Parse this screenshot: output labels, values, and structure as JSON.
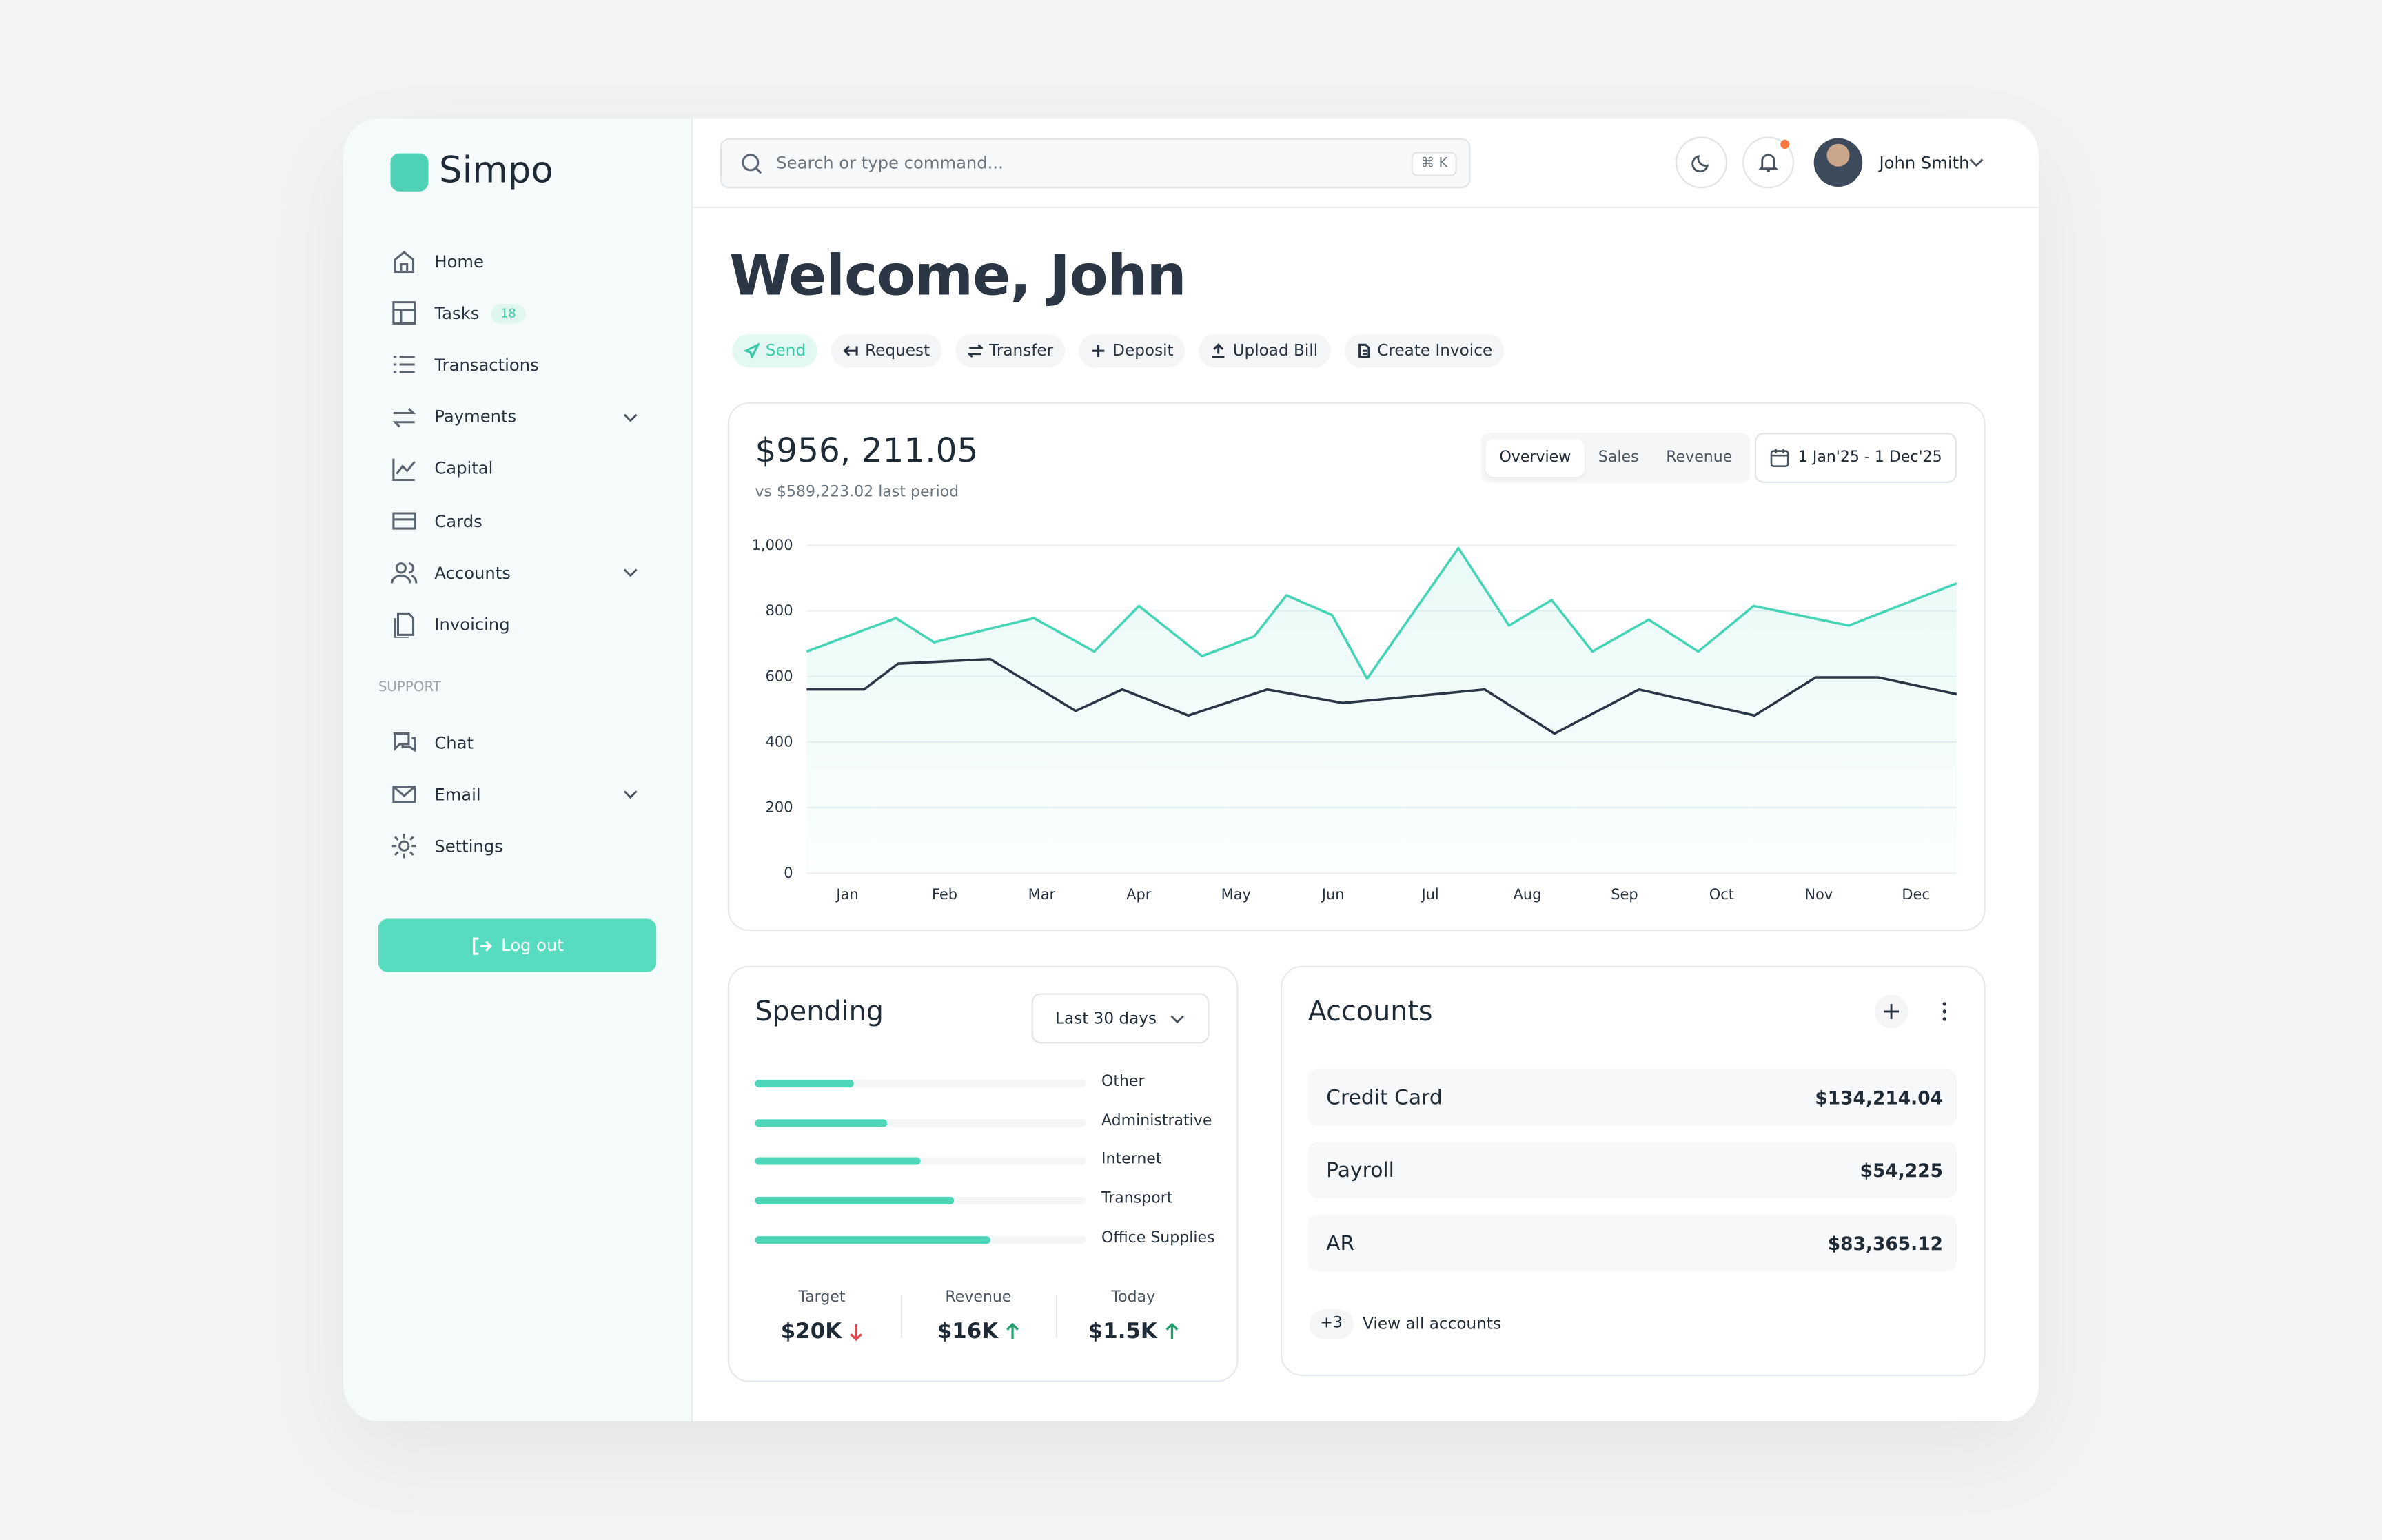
{
  "brand": "Simpo",
  "search": {
    "placeholder": "Search or type command...",
    "shortcut": "⌘ K"
  },
  "user": {
    "name": "John Smith"
  },
  "nav": [
    {
      "label": "Home"
    },
    {
      "label": "Tasks",
      "badge": 18
    },
    {
      "label": "Transactions"
    },
    {
      "label": "Payments",
      "expandable": true
    },
    {
      "label": "Capital"
    },
    {
      "label": "Cards"
    },
    {
      "label": "Accounts",
      "expandable": true
    },
    {
      "label": "Invoicing"
    }
  ],
  "support_label": "SUPPORT",
  "support": [
    {
      "label": "Chat"
    },
    {
      "label": "Email",
      "expandable": true
    },
    {
      "label": "Settings"
    }
  ],
  "logout": "Log out",
  "welcome": "Welcome, John",
  "actions": [
    "Send",
    "Request",
    "Transfer",
    "Deposit",
    "Upload Bill",
    "Create Invoice"
  ],
  "chart": {
    "type": "line",
    "total": "$956, 211.05",
    "comparison": "vs $589,223.02 last period",
    "tabs": [
      "Overview",
      "Sales",
      "Revenue"
    ],
    "date_range": "1 Jan'25 - 1 Dec'25",
    "xlim": [
      0.58,
      12.42
    ],
    "xticks": [
      {
        "value": 1,
        "label": "Jan"
      },
      {
        "value": 2,
        "label": "Feb"
      },
      {
        "value": 3,
        "label": "Mar"
      },
      {
        "value": 4,
        "label": "Apr"
      },
      {
        "value": 5,
        "label": "May"
      },
      {
        "value": 6,
        "label": "Jun"
      },
      {
        "value": 7,
        "label": "Jul"
      },
      {
        "value": 8,
        "label": "Aug"
      },
      {
        "value": 9,
        "label": "Sep"
      },
      {
        "value": 10,
        "label": "Oct"
      },
      {
        "value": 11,
        "label": "Nov"
      },
      {
        "value": 12,
        "label": "Dec"
      }
    ],
    "ylim": [
      0,
      1000
    ],
    "yticks": [
      {
        "value": 1000,
        "label": "1,000"
      },
      800,
      600,
      400,
      200,
      0
    ],
    "grid": true,
    "series": [
      {
        "color": "#45d4b5",
        "area": true,
        "x": [
          0.58,
          1.5,
          1.89,
          2.92,
          3.54,
          4.0,
          4.65,
          5.19,
          5.52,
          5.99,
          6.35,
          7.29,
          7.81,
          8.25,
          8.67,
          9.25,
          9.76,
          10.33,
          11.31,
          12.42
        ],
        "values": [
          676,
          778,
          704,
          778,
          676,
          815,
          662,
          722,
          847,
          787,
          593,
          991,
          755,
          833,
          676,
          773,
          676,
          815,
          755,
          884
        ]
      },
      {
        "color": "#2a3547",
        "area": false,
        "x": [
          0.58,
          1.17,
          1.52,
          2.47,
          3.35,
          3.83,
          4.51,
          5.32,
          6.1,
          7.56,
          8.28,
          9.15,
          10.34,
          10.97,
          11.61,
          12.42
        ],
        "values": [
          560,
          560,
          639,
          653,
          495,
          560,
          481,
          560,
          519,
          560,
          426,
          560,
          481,
          597,
          597,
          546
        ]
      }
    ]
  },
  "spending": {
    "type": "bar",
    "title": "Spending",
    "period": "Last 30 days",
    "color": "#4fd6b9",
    "xlim": [
      0,
      100
    ],
    "categories": [
      "Other",
      "Administrative",
      "Internet",
      "Transport",
      "Office Supplies"
    ],
    "values": [
      30,
      40,
      50,
      60,
      71
    ],
    "stats": [
      {
        "label": "Target",
        "value": "$20K",
        "trend": "down"
      },
      {
        "label": "Revenue",
        "value": "$16K",
        "trend": "up"
      },
      {
        "label": "Today",
        "value": "$1.5K",
        "trend": "up"
      }
    ]
  },
  "accounts": {
    "title": "Accounts",
    "rows": [
      {
        "name": "Credit Card",
        "amount": "$134,214.04"
      },
      {
        "name": "Payroll",
        "amount": "$54,225"
      },
      {
        "name": "AR",
        "amount": "$83,365.12"
      }
    ],
    "more": "+3",
    "link": "View all accounts"
  }
}
